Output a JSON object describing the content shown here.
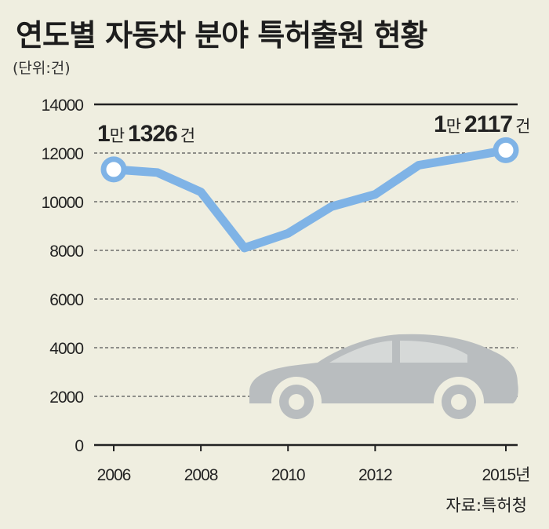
{
  "header": {
    "title": "연도별 자동차 분야 특허출원 현황",
    "unit": "(단위:건)"
  },
  "footer": {
    "source": "자료:특허청"
  },
  "annotations": {
    "start": {
      "man": "1",
      "unit_man": "만",
      "rest": "1326",
      "unit": "건"
    },
    "end": {
      "man": "1",
      "unit_man": "만",
      "rest": "2117",
      "unit": "건"
    }
  },
  "colors": {
    "background": "#efeee0",
    "line": "#7fb3e6",
    "car": "#b9bdbf",
    "grid": "#555555"
  },
  "chart_data": {
    "type": "line",
    "title": "연도별 자동차 분야 특허출원 현황",
    "xlabel": "",
    "ylabel": "",
    "x_tick_labels": [
      "2006",
      "2008",
      "2010",
      "2012",
      "2015년"
    ],
    "x_ticks": [
      2006,
      2008,
      2010,
      2012,
      2015
    ],
    "yticks": [
      0,
      2000,
      4000,
      6000,
      8000,
      10000,
      12000,
      14000
    ],
    "ylim": [
      0,
      14000
    ],
    "xlim": [
      2006,
      2015
    ],
    "grid": true,
    "series": [
      {
        "x": [
          2006,
          2007,
          2008,
          2009,
          2010,
          2011,
          2012,
          2013,
          2014,
          2015
        ],
        "values": [
          11326,
          11200,
          10400,
          8100,
          8700,
          9800,
          10300,
          11500,
          11800,
          12117
        ]
      }
    ]
  }
}
